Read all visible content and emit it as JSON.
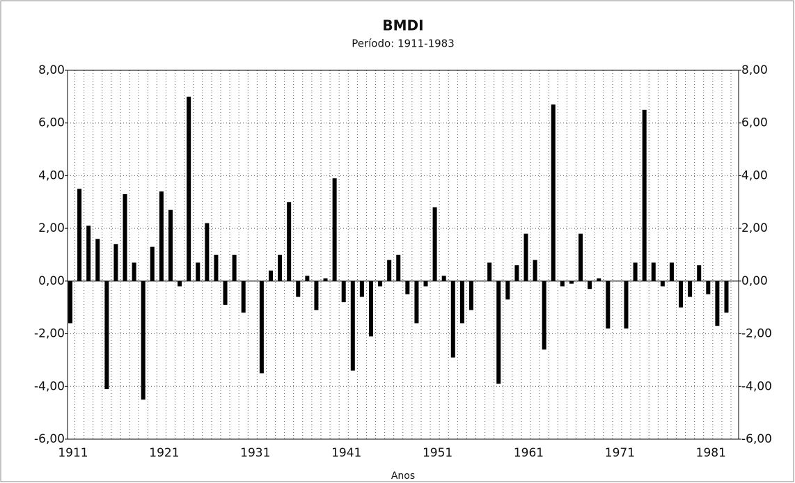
{
  "chart_data": {
    "type": "bar",
    "title": "BMDI",
    "subtitle": "Período: 1911-1983",
    "x_label": "Anos",
    "categories": [
      "1911",
      null,
      null,
      null,
      null,
      null,
      null,
      null,
      null,
      null,
      "1921",
      null,
      null,
      null,
      null,
      null,
      null,
      null,
      null,
      null,
      "1931",
      null,
      null,
      null,
      null,
      null,
      null,
      null,
      null,
      null,
      "1941",
      null,
      null,
      null,
      null,
      null,
      null,
      null,
      null,
      null,
      "1951",
      null,
      null,
      null,
      null,
      null,
      null,
      null,
      null,
      null,
      "1961",
      null,
      null,
      null,
      null,
      null,
      null,
      null,
      null,
      null,
      "1971",
      null,
      null,
      null,
      null,
      null,
      null,
      null,
      null,
      null,
      "1981",
      null,
      null
    ],
    "values": [
      -1.6,
      3.5,
      2.1,
      1.6,
      -4.1,
      1.4,
      3.3,
      0.7,
      -4.5,
      1.3,
      3.4,
      2.7,
      -0.2,
      7.0,
      0.7,
      2.2,
      1.0,
      -0.9,
      1.0,
      -1.2,
      0,
      -3.5,
      0.4,
      1.0,
      3.0,
      -0.6,
      0.2,
      -1.1,
      0.1,
      3.9,
      -0.8,
      -3.4,
      -0.6,
      -2.1,
      -0.2,
      0.8,
      1.0,
      -0.5,
      -1.6,
      -0.2,
      2.8,
      0.2,
      -2.9,
      -1.6,
      -1.1,
      0,
      0.7,
      -3.9,
      -0.7,
      0.6,
      1.8,
      0.8,
      -2.6,
      6.7,
      -0.2,
      -0.1,
      1.8,
      -0.3,
      0.1,
      -1.8,
      0,
      -1.8,
      0.7,
      6.5,
      0.7,
      -0.2,
      0.7,
      -1.0,
      -0.6,
      0.6,
      -0.5,
      -1.7,
      -1.2
    ],
    "color": "#000000",
    "ylim": [
      -6,
      8
    ],
    "yticks": [
      {
        "value": -6,
        "label": "-6,00"
      },
      {
        "value": -4,
        "label": "-4,00"
      },
      {
        "value": -2,
        "label": "-2,00"
      },
      {
        "value": 0,
        "label": "0,00"
      },
      {
        "value": 2,
        "label": "2,00"
      },
      {
        "value": 4,
        "label": "4,00"
      },
      {
        "value": 6,
        "label": "6,00"
      },
      {
        "value": 8,
        "label": "8,00"
      }
    ],
    "grid": true
  }
}
